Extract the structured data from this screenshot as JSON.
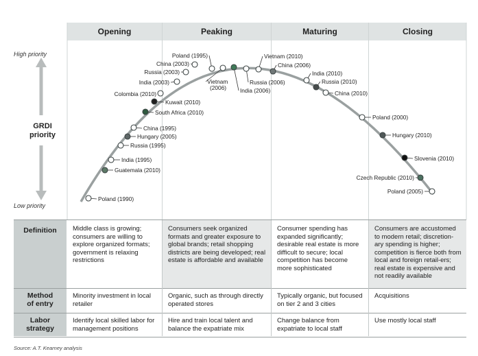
{
  "phases": [
    "Opening",
    "Peaking",
    "Maturing",
    "Closing"
  ],
  "axis": {
    "high_label": "High priority",
    "low_label": "Low priority",
    "title_line1": "GRDI",
    "title_line2": "priority"
  },
  "points": [
    {
      "label": "Poland (1990)",
      "fill": "#ffffff"
    },
    {
      "label": "Guatemala (2010)",
      "fill": "#5d7a67"
    },
    {
      "label": "India (1995)",
      "fill": "#ffffff"
    },
    {
      "label": "Russia (1995)",
      "fill": "#ffffff"
    },
    {
      "label": "Hungary (2005)",
      "fill": "#606868"
    },
    {
      "label": "China (1995)",
      "fill": "#ffffff"
    },
    {
      "label": "South Africa (2010)",
      "fill": "#2f5a3f"
    },
    {
      "label": "Kuwait (2010)",
      "fill": "#202020"
    },
    {
      "label": "Colombia (2010)",
      "fill": "#ffffff"
    },
    {
      "label": "India (2003)",
      "fill": "#ffffff"
    },
    {
      "label": "Russia (2003)",
      "fill": "#ffffff"
    },
    {
      "label": "China (2003)",
      "fill": "#ffffff"
    },
    {
      "label": "Poland (1995)",
      "fill": "#ffffff"
    },
    {
      "label": "Vietnam (2006)",
      "fill": "#ffffff"
    },
    {
      "label": "India (2006)",
      "fill": "#3f7a58"
    },
    {
      "label": "Russia (2006)",
      "fill": "#ffffff"
    },
    {
      "label": "Vietnam (2010)",
      "fill": "#ffffff"
    },
    {
      "label": "China (2006)",
      "fill": "#707878"
    },
    {
      "label": "India (2010)",
      "fill": "#ffffff"
    },
    {
      "label": "Russia (2010)",
      "fill": "#484c4c"
    },
    {
      "label": "China (2010)",
      "fill": "#ffffff"
    },
    {
      "label": "Poland (2000)",
      "fill": "#ffffff"
    },
    {
      "label": "Hungary (2010)",
      "fill": "#505858"
    },
    {
      "label": "Slovenia (2010)",
      "fill": "#101010"
    },
    {
      "label": "Czech Republic (2010)",
      "fill": "#4c7060"
    },
    {
      "label": "Poland (2005)",
      "fill": "#ffffff"
    }
  ],
  "rows": [
    {
      "label_lines": [
        "Definition"
      ],
      "cells": [
        "Middle class is growing; consumers are willing to explore organized formats; government is relaxing restrictions",
        "Consumers seek organized formats and greater exposure to global brands; retail shopping districts are being developed; real estate is affordable and available",
        "Consumer spending has expanded significantly; desirable real estate is more difficult to secure; local competition has become more sophisticated",
        "Consumers are accustomed to modern retail; discretion-ary spending is higher; competition is fierce both from local and foreign retail-ers; real estate is expensive and not readily available"
      ]
    },
    {
      "label_lines": [
        "Method",
        "of entry"
      ],
      "cells": [
        "Minority investment in local retailer",
        "Organic, such as through directly operated stores",
        "Typically organic, but focused on tier 2 and 3 cities",
        "Acquisitions"
      ]
    },
    {
      "label_lines": [
        "Labor",
        "strategy"
      ],
      "cells": [
        "Identify local skilled labor for management positions",
        "Hire and train local talent and balance the expatriate mix",
        "Change balance from expatriate to local staff",
        "Use mostly local staff"
      ]
    }
  ],
  "source": "Source: A.T. Kearney analysis",
  "colors": {
    "header_bg": "#dfe3e3",
    "row_label_bg": "#c9cfcf",
    "cell_gray": "#e6e8e8",
    "curve": "#9aa0a0"
  }
}
